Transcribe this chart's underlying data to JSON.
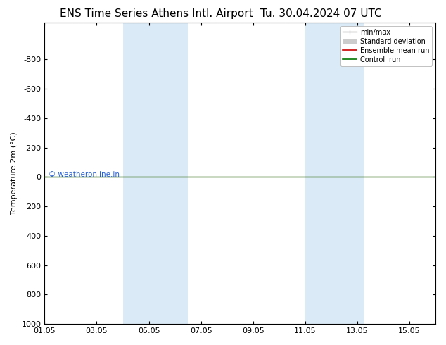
{
  "title_left": "ENS Time Series Athens Intl. Airport",
  "title_right": "Tu. 30.04.2024 07 UTC",
  "ylabel": "Temperature 2m (°C)",
  "watermark": "© weatheronline.in",
  "ylim_bottom": 1000,
  "ylim_top": -1050,
  "yticks": [
    -800,
    -600,
    -400,
    -200,
    0,
    200,
    400,
    600,
    800,
    1000
  ],
  "xtick_labels": [
    "01.05",
    "03.05",
    "05.05",
    "07.05",
    "09.05",
    "11.05",
    "13.05",
    "15.05"
  ],
  "xtick_offsets_days": [
    0,
    2,
    4,
    6,
    8,
    10,
    12,
    14
  ],
  "band1_start_day": 3,
  "band1_end_day": 5.5,
  "band2_start_day": 10,
  "band2_end_day": 12.25,
  "band_color": "#daeaf6",
  "green_line_color": "#007700",
  "red_line_color": "#cc0000",
  "background_color": "#ffffff",
  "legend_entries": [
    "min/max",
    "Standard deviation",
    "Ensemble mean run",
    "Controll run"
  ],
  "font_size": 8,
  "title_font_size": 11,
  "fig_width": 6.34,
  "fig_height": 4.9
}
